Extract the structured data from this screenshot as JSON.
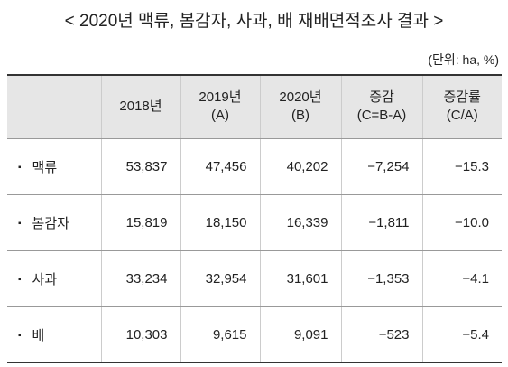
{
  "header": {
    "title": "< 2020년 맥류, 봄감자, 사과, 배 재배면적조사 결과 >",
    "unit": "(단위: ha, %)"
  },
  "table": {
    "columns": [
      [
        ""
      ],
      [
        "2018년"
      ],
      [
        "2019년",
        "(A)"
      ],
      [
        "2020년",
        "(B)"
      ],
      [
        "증감",
        "(C=B-A)"
      ],
      [
        "증감률",
        "(C/A)"
      ]
    ],
    "rows": [
      [
        "맥류",
        "53,837",
        "47,456",
        "40,202",
        "−7,254",
        "−15.3"
      ],
      [
        "봄감자",
        "15,819",
        "18,150",
        "16,339",
        "−1,811",
        "−10.0"
      ],
      [
        "사과",
        "33,234",
        "32,954",
        "31,601",
        "−1,353",
        "−4.1"
      ],
      [
        "배",
        "10,303",
        "9,615",
        "9,091",
        "−523",
        "−5.4"
      ]
    ]
  }
}
